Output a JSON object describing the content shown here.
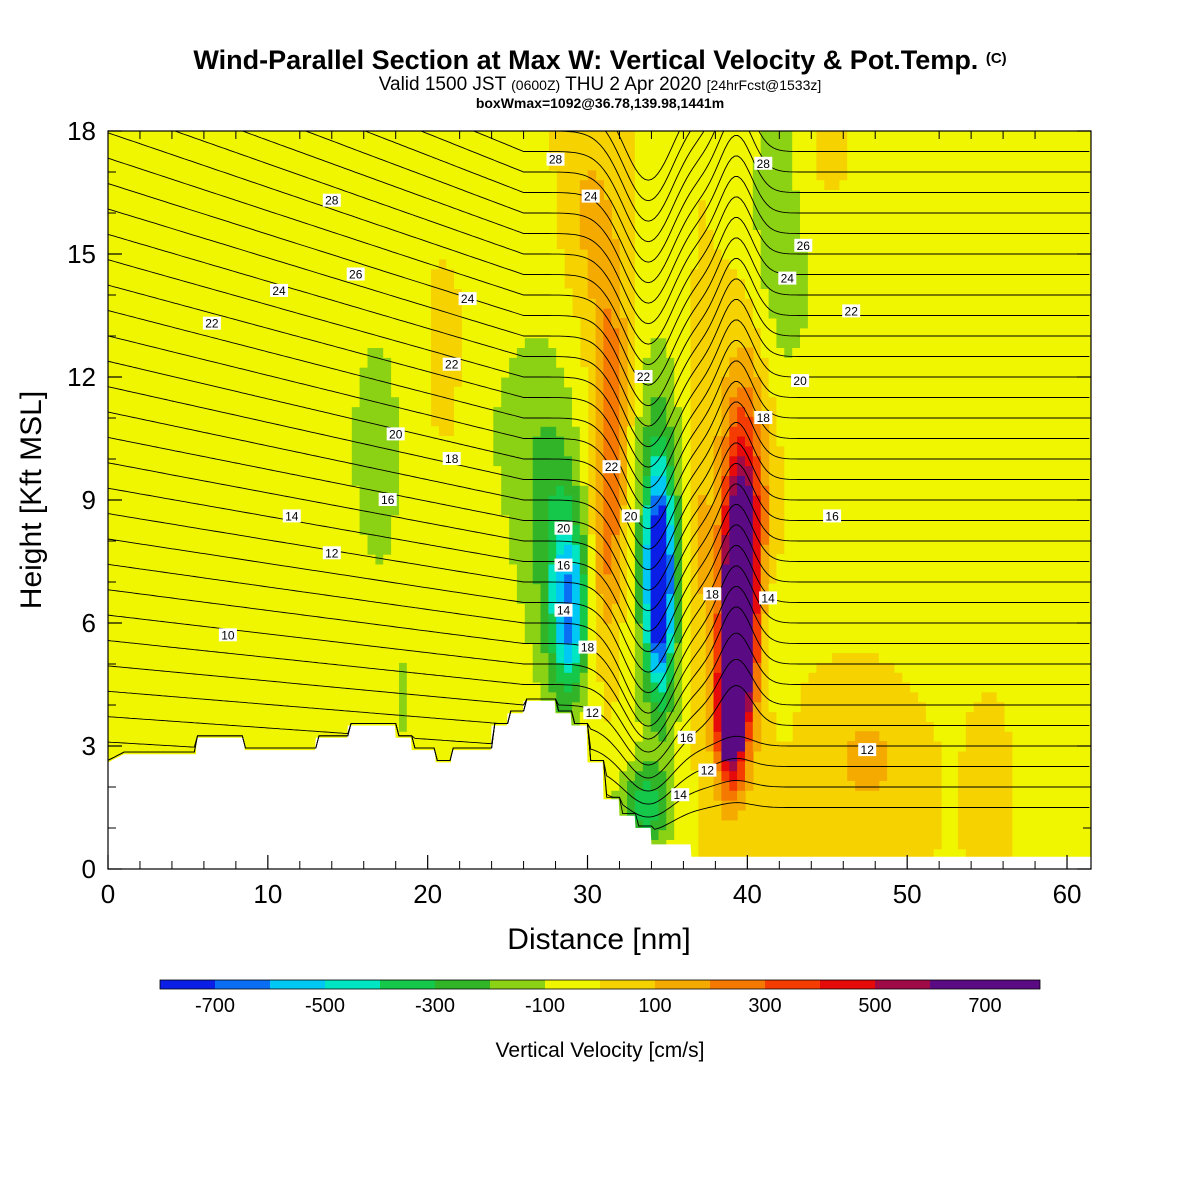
{
  "title": {
    "main": "Wind-Parallel Section at Max W: Vertical Velocity & Pot.Temp.",
    "copyright": "(C)",
    "valid_prefix": "Valid 1500 JST",
    "valid_utc": "(0600Z)",
    "valid_date": "THU 2 Apr 2020",
    "forecast": "[24hrFcst@1533z]",
    "boxwmax": "boxWmax=1092@36.78,139.98,1441m"
  },
  "chart_data": {
    "type": "heatmap",
    "xlabel": "Distance [nm]",
    "ylabel": "Height [Kft MSL]",
    "xlim": [
      0,
      61.5
    ],
    "ylim": [
      0,
      18
    ],
    "xticks": [
      0,
      10,
      20,
      30,
      40,
      50,
      60
    ],
    "yticks": [
      0,
      3,
      6,
      9,
      12,
      15,
      18
    ],
    "colorbar": {
      "title": "Vertical Velocity [cm/s]",
      "bounds": [
        -800,
        800
      ],
      "levels": [
        -800,
        -700,
        -600,
        -500,
        -400,
        -300,
        -200,
        -100,
        0,
        100,
        200,
        300,
        400,
        500,
        600,
        700,
        800
      ],
      "colors": [
        "#0a1ee6",
        "#0a6ef5",
        "#00c8f5",
        "#00e6c3",
        "#16c84a",
        "#32b428",
        "#8cd214",
        "#f0f500",
        "#f5d200",
        "#f5aa00",
        "#f57800",
        "#f53c00",
        "#e60a0a",
        "#a00a46",
        "#5a0a82",
        "#5a0a82"
      ],
      "tick_labels": [
        -700,
        -500,
        -300,
        -100,
        100,
        300,
        500,
        700
      ]
    },
    "contours": {
      "variable": "Potential Temperature",
      "labels": [
        {
          "x": 7.5,
          "y": 5.7,
          "text": "10"
        },
        {
          "x": 14,
          "y": 7.7,
          "text": "12"
        },
        {
          "x": 11.5,
          "y": 8.6,
          "text": "14"
        },
        {
          "x": 17.5,
          "y": 9.0,
          "text": "16"
        },
        {
          "x": 18,
          "y": 10.6,
          "text": "20"
        },
        {
          "x": 21.5,
          "y": 10.0,
          "text": "18"
        },
        {
          "x": 6.5,
          "y": 13.3,
          "text": "22"
        },
        {
          "x": 10.7,
          "y": 14.1,
          "text": "24"
        },
        {
          "x": 15.5,
          "y": 14.5,
          "text": "26"
        },
        {
          "x": 14,
          "y": 16.3,
          "text": "28"
        },
        {
          "x": 21.5,
          "y": 12.3,
          "text": "22"
        },
        {
          "x": 22.5,
          "y": 13.9,
          "text": "24"
        },
        {
          "x": 28,
          "y": 17.3,
          "text": "28"
        },
        {
          "x": 30.2,
          "y": 16.4,
          "text": "24"
        },
        {
          "x": 33.5,
          "y": 12.0,
          "text": "22"
        },
        {
          "x": 31.5,
          "y": 9.8,
          "text": "22"
        },
        {
          "x": 32.7,
          "y": 8.6,
          "text": "20"
        },
        {
          "x": 28.5,
          "y": 8.3,
          "text": "20"
        },
        {
          "x": 28.5,
          "y": 7.4,
          "text": "16"
        },
        {
          "x": 28.5,
          "y": 6.3,
          "text": "14"
        },
        {
          "x": 30,
          "y": 5.4,
          "text": "18"
        },
        {
          "x": 30.3,
          "y": 3.8,
          "text": "12"
        },
        {
          "x": 36.2,
          "y": 3.2,
          "text": "16"
        },
        {
          "x": 37.5,
          "y": 2.4,
          "text": "12"
        },
        {
          "x": 35.8,
          "y": 1.8,
          "text": "14"
        },
        {
          "x": 37.8,
          "y": 6.7,
          "text": "18"
        },
        {
          "x": 41.3,
          "y": 6.6,
          "text": "14"
        },
        {
          "x": 41,
          "y": 11.0,
          "text": "18"
        },
        {
          "x": 43.3,
          "y": 11.9,
          "text": "20"
        },
        {
          "x": 46.5,
          "y": 13.6,
          "text": "22"
        },
        {
          "x": 42.5,
          "y": 14.4,
          "text": "24"
        },
        {
          "x": 43.5,
          "y": 15.2,
          "text": "26"
        },
        {
          "x": 41,
          "y": 17.2,
          "text": "28"
        },
        {
          "x": 45.3,
          "y": 8.6,
          "text": "16"
        },
        {
          "x": 47.5,
          "y": 2.9,
          "text": "12"
        }
      ]
    }
  }
}
